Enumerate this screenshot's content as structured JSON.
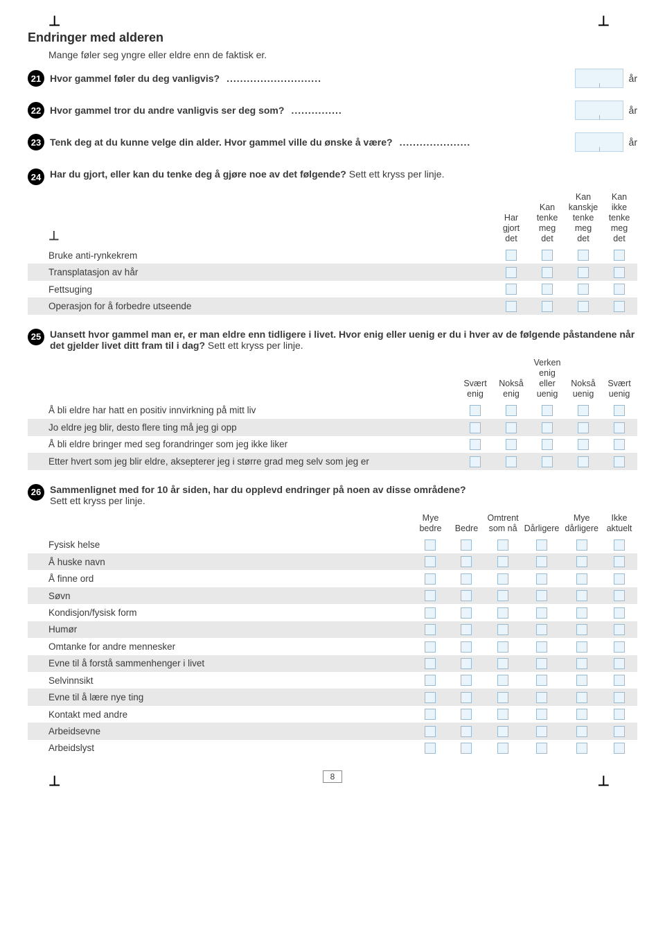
{
  "corner_glyph": "⊥",
  "page_number": "8",
  "section_title": "Endringer med alderen",
  "intro_text": "Mange føler seg yngre eller eldre enn de faktisk er.",
  "unit_year": "år",
  "q21": {
    "num": "21",
    "text": "Hvor gammel føler du deg vanligvis?",
    "dots": "............................"
  },
  "q22": {
    "num": "22",
    "text": "Hvor gammel tror du andre vanligvis ser deg som?",
    "dots": "..............."
  },
  "q23": {
    "num": "23",
    "text": "Tenk deg at du kunne velge din alder. Hvor gammel ville du ønske å være?",
    "dots": "....................."
  },
  "q24": {
    "num": "24",
    "text": "Har du gjort, eller kan du tenke deg å gjøre noe av det følgende?",
    "instr": "Sett ett kryss per linje.",
    "headers": [
      "Har gjort det",
      "Kan tenke meg det",
      "Kan kanskje tenke meg det",
      "Kan ikke tenke meg det"
    ],
    "rows": [
      "Bruke anti-rynkekrem",
      "Transplatasjon av hår",
      "Fettsuging",
      "Operasjon for å forbedre utseende"
    ]
  },
  "q25": {
    "num": "25",
    "text": "Uansett hvor gammel man er, er man eldre enn tidligere i livet. Hvor enig eller uenig er du i hver av de følgende påstandene når det gjelder livet ditt fram til i dag?",
    "instr": "Sett ett kryss per linje.",
    "headers": [
      "Svært enig",
      "Nokså enig",
      "Verken enig eller uenig",
      "Nokså uenig",
      "Svært uenig"
    ],
    "rows": [
      "Å bli eldre har hatt en positiv innvirkning på mitt liv",
      "Jo eldre jeg blir, desto flere ting må jeg gi opp",
      "Å bli eldre bringer med seg forandringer som jeg ikke liker",
      "Etter hvert som jeg blir eldre, aksepterer jeg i større grad meg selv som jeg er"
    ]
  },
  "q26": {
    "num": "26",
    "text": "Sammenlignet med for 10 år siden, har du opplevd endringer på noen av disse områdene?",
    "instr": "Sett ett kryss per linje.",
    "headers": [
      "Mye bedre",
      "Bedre",
      "Omtrent som nå",
      "Dårligere",
      "Mye dårligere",
      "Ikke aktuelt"
    ],
    "rows": [
      "Fysisk helse",
      "Å huske navn",
      "Å finne ord",
      "Søvn",
      "Kondisjon/fysisk form",
      "Humør",
      "Omtanke for andre mennesker",
      "Evne til å forstå sammenhenger i livet",
      "Selvinnsikt",
      "Evne til å lære nye ting",
      "Kontakt med andre",
      "Arbeidsevne",
      "Arbeidslyst"
    ]
  }
}
